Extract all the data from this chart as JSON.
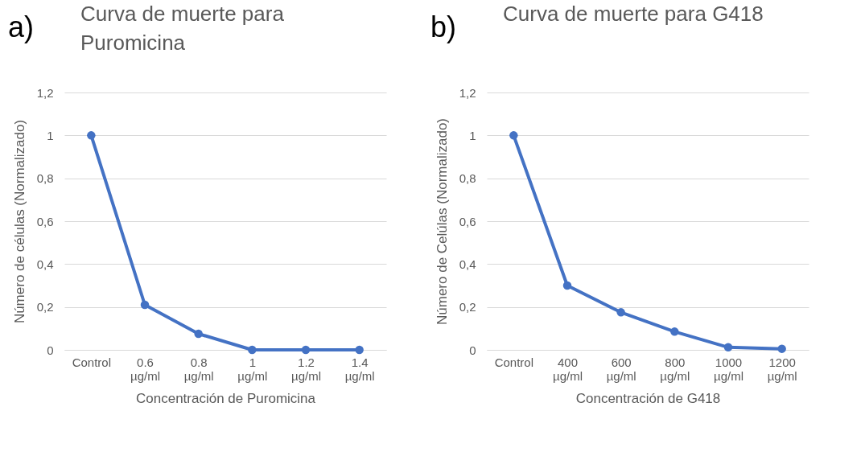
{
  "chart_data": [
    {
      "type": "line",
      "title": "Curva de muerte para Puromicina",
      "annotations": [
        "a)"
      ],
      "xlabel": "Concentración de Puromicina",
      "ylabel": "Número de células (Normalizado)",
      "categories": [
        "Control",
        "0.6 µg/ml",
        "0.8 µg/ml",
        "1 µg/ml",
        "1.2 µg/ml",
        "1.4 µg/ml"
      ],
      "series": [
        {
          "color": "#4472c4",
          "values": [
            1,
            0.21,
            0.075,
            0,
            0,
            0
          ]
        }
      ],
      "ylim": [
        0,
        1.2
      ],
      "yticks": [
        {
          "value": 0,
          "label": "0"
        },
        {
          "value": 0.2,
          "label": "0,2"
        },
        {
          "value": 0.4,
          "label": "0,4"
        },
        {
          "value": 0.6,
          "label": "0,6"
        },
        {
          "value": 0.8,
          "label": "0,8"
        },
        {
          "value": 1,
          "label": "1"
        },
        {
          "value": 1.2,
          "label": "1,2"
        }
      ],
      "grid": "y",
      "legend": false,
      "marker": "circle",
      "line_style": "solid"
    },
    {
      "type": "line",
      "title": "Curva de muerte para G418",
      "annotations": [
        "b)"
      ],
      "xlabel": "Concentración de G418",
      "ylabel": "Número de Celúlas (Normalizado)",
      "categories": [
        "Control",
        "400 µg/ml",
        "600 µg/ml",
        "800 µg/ml",
        "1000 µg/ml",
        "1200 µg/ml"
      ],
      "series": [
        {
          "color": "#4472c4",
          "values": [
            1,
            0.3,
            0.175,
            0.085,
            0.012,
            0.005
          ]
        }
      ],
      "ylim": [
        0,
        1.2
      ],
      "yticks": [
        {
          "value": 0,
          "label": "0"
        },
        {
          "value": 0.2,
          "label": "0,2"
        },
        {
          "value": 0.4,
          "label": "0,4"
        },
        {
          "value": 0.6,
          "label": "0,6"
        },
        {
          "value": 0.8,
          "label": "0,8"
        },
        {
          "value": 1,
          "label": "1"
        },
        {
          "value": 1.2,
          "label": "1,2"
        }
      ],
      "grid": "y",
      "legend": false,
      "marker": "circle",
      "line_style": "solid"
    }
  ]
}
